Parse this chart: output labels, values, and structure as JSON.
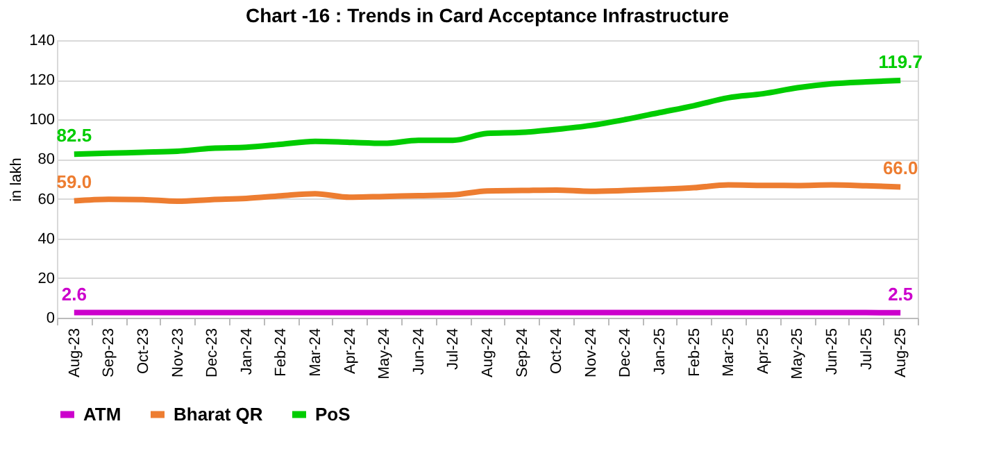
{
  "chart_data": {
    "type": "line",
    "title": "Chart -16 : Trends in Card Acceptance Infrastructure",
    "ylabel": "in lakh",
    "categories": [
      "Aug-23",
      "Sep-23",
      "Oct-23",
      "Nov-23",
      "Dec-23",
      "Jan-24",
      "Feb-24",
      "Mar-24",
      "Apr-24",
      "May-24",
      "Jun-24",
      "Jul-24",
      "Aug-24",
      "Sep-24",
      "Oct-24",
      "Nov-24",
      "Dec-24",
      "Jan-25",
      "Feb-25",
      "Mar-25",
      "Apr-25",
      "May-25",
      "Jun-25",
      "Jul-25",
      "Aug-25"
    ],
    "series": [
      {
        "name": "ATM",
        "color": "#cc00cc",
        "values": [
          2.6,
          2.6,
          2.6,
          2.6,
          2.6,
          2.6,
          2.6,
          2.6,
          2.6,
          2.6,
          2.6,
          2.6,
          2.6,
          2.6,
          2.6,
          2.6,
          2.6,
          2.6,
          2.6,
          2.6,
          2.6,
          2.6,
          2.6,
          2.6,
          2.5
        ],
        "value_labels": [
          "2.6",
          null,
          null,
          null,
          null,
          null,
          null,
          null,
          null,
          null,
          null,
          null,
          null,
          null,
          null,
          null,
          null,
          null,
          null,
          null,
          null,
          null,
          null,
          null,
          "2.5"
        ]
      },
      {
        "name": "Bharat QR",
        "color": "#ed7d31",
        "values": [
          59.0,
          59.8,
          59.6,
          58.8,
          59.6,
          60.2,
          61.5,
          62.6,
          60.8,
          61.2,
          61.6,
          62.0,
          64.0,
          64.2,
          64.4,
          63.8,
          64.2,
          64.8,
          65.6,
          67.0,
          66.8,
          66.7,
          67.0,
          66.6,
          66.0
        ],
        "value_labels": [
          "59.0",
          null,
          null,
          null,
          null,
          null,
          null,
          null,
          null,
          null,
          null,
          null,
          null,
          null,
          null,
          null,
          null,
          null,
          null,
          null,
          null,
          null,
          null,
          null,
          "66.0"
        ]
      },
      {
        "name": "PoS",
        "color": "#00cc00",
        "values": [
          82.5,
          83.0,
          83.5,
          84.0,
          85.5,
          86.0,
          87.5,
          89.0,
          88.5,
          88.0,
          89.5,
          89.5,
          93.0,
          93.5,
          95.0,
          97.0,
          100.0,
          103.5,
          107.0,
          111.0,
          113.0,
          116.0,
          118.0,
          119.0,
          119.7
        ],
        "value_labels": [
          "82.5",
          null,
          null,
          null,
          null,
          null,
          null,
          null,
          null,
          null,
          null,
          null,
          null,
          null,
          null,
          null,
          null,
          null,
          null,
          null,
          null,
          null,
          null,
          null,
          "119.7"
        ]
      }
    ],
    "ylim": [
      0,
      140
    ],
    "yticks": [
      0,
      20,
      40,
      60,
      80,
      100,
      120,
      140
    ],
    "grid": "y",
    "legend": "bottom",
    "marker": "none",
    "line_style": "solid"
  }
}
